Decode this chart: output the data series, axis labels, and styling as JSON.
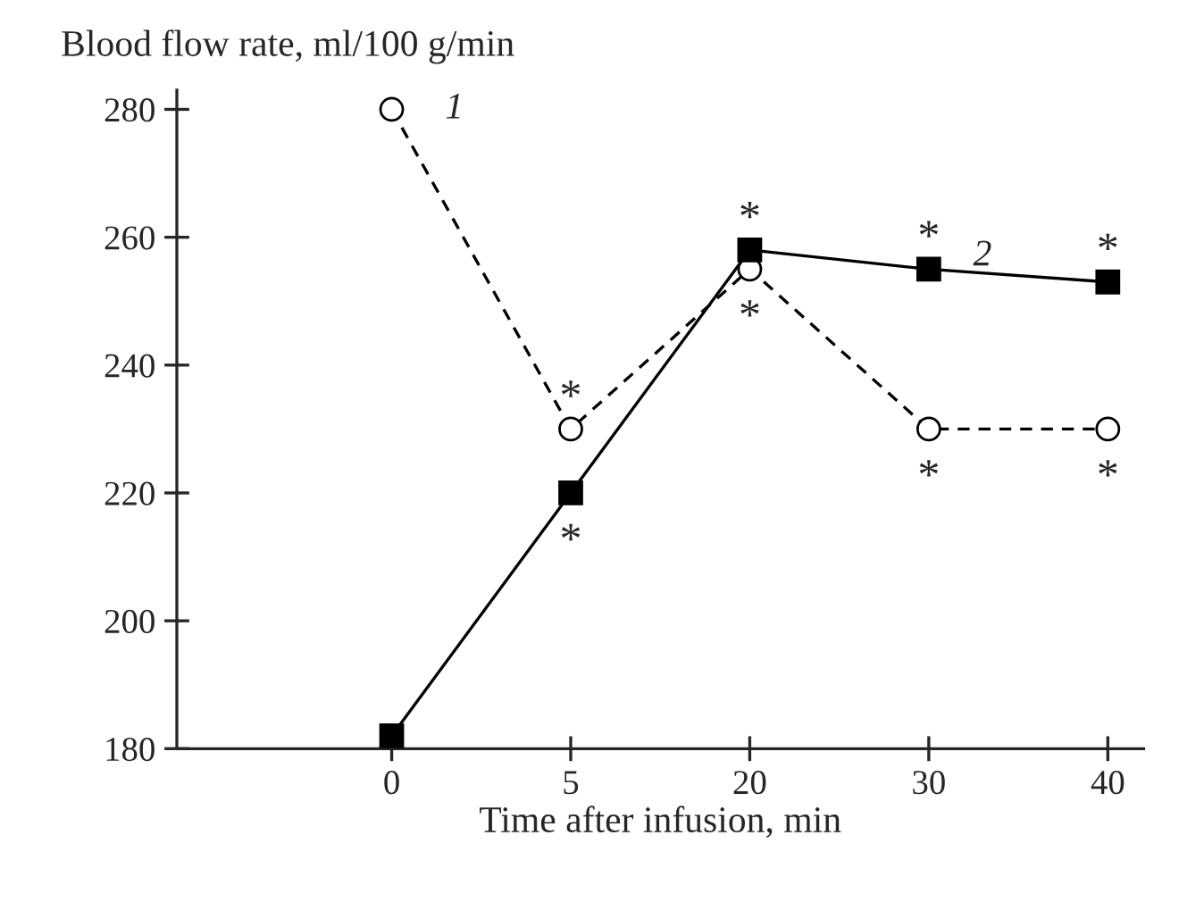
{
  "chart_data": {
    "type": "line",
    "ylabel": "Blood flow rate, ml/100 g/min",
    "xlabel": "Time after infusion, min",
    "categories": [
      "0",
      "5",
      "20",
      "30",
      "40"
    ],
    "series": [
      {
        "name": "1",
        "color": "#000000",
        "values": [
          280,
          230,
          255,
          230,
          230
        ],
        "marker": "circle",
        "line_style": "dashed"
      },
      {
        "name": "2",
        "color": "#000000",
        "values": [
          182,
          220,
          258,
          255,
          253
        ],
        "marker": "square",
        "line_style": "solid"
      }
    ],
    "ylim": [
      180,
      283
    ],
    "yticks": [
      180,
      200,
      220,
      240,
      260,
      280
    ],
    "grid": false,
    "legend": false,
    "annotations": [
      {
        "text": "*",
        "x": "5",
        "y": 230
      },
      {
        "text": "*",
        "x": "20",
        "y": 255
      },
      {
        "text": "*",
        "x": "30",
        "y": 230
      },
      {
        "text": "*",
        "x": "40",
        "y": 230
      },
      {
        "text": "*",
        "x": "5",
        "y": 220
      },
      {
        "text": "*",
        "x": "20",
        "y": 258
      },
      {
        "text": "*",
        "x": "30",
        "y": 255
      },
      {
        "text": "*",
        "x": "40",
        "y": 253
      }
    ]
  }
}
